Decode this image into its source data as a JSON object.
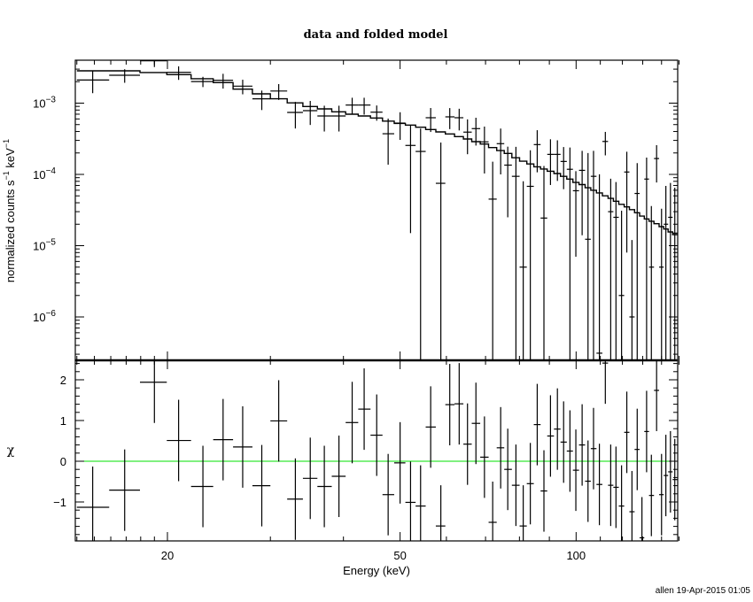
{
  "chart_data": {
    "type": "scatter",
    "title": "data and folded model",
    "xlabel": "Energy (keV)",
    "panels": {
      "top": {
        "ylabel_main": "normalized counts s",
        "ylabel_exp1": "−1",
        "ylabel_mid": " keV",
        "ylabel_exp2": "−1",
        "yscale": "log",
        "ylim": [
          2.4e-07,
          0.0041
        ],
        "ytick_labels": [
          {
            "value": 0.001,
            "base": "10",
            "exp": "−3"
          },
          {
            "value": 0.0001,
            "base": "10",
            "exp": "−4"
          },
          {
            "value": 1e-05,
            "base": "10",
            "exp": "−5"
          },
          {
            "value": 1e-06,
            "base": "10",
            "exp": "−6"
          }
        ]
      },
      "bottom": {
        "ylabel": "χ",
        "ylim": [
          -1.96,
          2.48
        ],
        "ytick_labels": [
          {
            "value": 2,
            "label": "2"
          },
          {
            "value": 1,
            "label": "1"
          },
          {
            "value": 0,
            "label": "0"
          },
          {
            "value": -1,
            "label": "−1"
          }
        ],
        "zero_line_color": "#00e000"
      }
    },
    "xscale": "log",
    "xlim": [
      14,
      150
    ],
    "xtick_labels": [
      {
        "value": 20,
        "label": "20"
      },
      {
        "value": 50,
        "label": "50"
      },
      {
        "value": 100,
        "label": "100"
      }
    ],
    "energy_keV": [
      14.9,
      16.9,
      19.0,
      20.9,
      23.0,
      24.9,
      26.9,
      29.0,
      31.0,
      33.1,
      35.1,
      37.1,
      39.3,
      41.4,
      43.4,
      45.6,
      47.7,
      50.0,
      52.1,
      54.2,
      56.4,
      58.7,
      60.8,
      63.1,
      65.2,
      67.4,
      69.7,
      72.0,
      74.3,
      76.4,
      78.9,
      81.2,
      83.5,
      85.8,
      88.1,
      90.4,
      92.9,
      95.2,
      97.6,
      99.9,
      102.4,
      104.8,
      107.1,
      109.6,
      112.2,
      114.6,
      117.0,
      119.6,
      122.1,
      124.6,
      127.2,
      129.6,
      132.0,
      134.5,
      137.3,
      140.0,
      142.4,
      145.0,
      147.5
    ],
    "data_rate": [
      0.00211,
      0.00246,
      0.00393,
      0.0027,
      0.00201,
      0.00209,
      0.00173,
      0.00115,
      0.00148,
      0.000741,
      0.000784,
      0.00066,
      0.00066,
      0.00094,
      0.00094,
      0.000747,
      0.000372,
      0.000525,
      0.000255,
      0.00021,
      0.000624,
      7.5e-05,
      0.000642,
      0.000624,
      0.000392,
      0.000439,
      0.000286,
      4.5e-05,
      0.00027,
      0.000135,
      9.4e-05,
      5e-06,
      6.8e-05,
      0.000262,
      2.44e-05,
      0.000191,
      0.000191,
      0.000152,
      0.000118,
      5.9e-05,
      0.000114,
      1.23e-05,
      9.4e-05,
      3.1e-07,
      0.00029,
      3e-05,
      2.5e-05,
      2e-06,
      0.000108,
      1e-06,
      5.4e-05,
      1e-07,
      8.6e-05,
      5e-06,
      0.000167,
      5e-06,
      2e-05,
      2.5e-05,
      1.5e-05
    ],
    "data_error": [
      0.00073,
      0.00053,
      0.00072,
      0.00058,
      0.00033,
      0.00049,
      0.0004,
      0.00035,
      0.00037,
      0.0003,
      0.00029,
      0.00026,
      0.00026,
      0.00025,
      0.00025,
      0.00018,
      0.000235,
      0.00022,
      0.00024,
      0.00023,
      0.00023,
      0.000205,
      0.00021,
      0.00021,
      0.0002,
      0.000185,
      0.000183,
      0.000106,
      0.00017,
      0.00011,
      0.00015,
      7.5e-05,
      0.00015,
      0.000155,
      0.000107,
      0.00012,
      0.00011,
      9e-05,
      0.00012,
      5.2e-05,
      0.0001,
      0.000187,
      0.00012,
      0.0001,
      0.000105,
      5.7e-05,
      5.3e-05,
      2.9e-05,
      0.0001,
      1.1e-05,
      9e-05,
      1e-07,
      8.6e-05,
      3.1e-05,
      9e-05,
      2.8e-05,
      4.9e-05,
      5.1e-05,
      5e-05
    ],
    "model_rate": [
      0.00284,
      0.00284,
      0.00269,
      0.00251,
      0.0022,
      0.00194,
      0.00157,
      0.00135,
      0.00115,
      0.00101,
      0.000897,
      0.00083,
      0.000755,
      0.0007,
      0.00066,
      0.000618,
      0.00056,
      0.00052,
      0.000492,
      0.000459,
      0.000426,
      0.000395,
      0.00037,
      0.000339,
      0.000314,
      0.000288,
      0.000267,
      0.000238,
      0.000216,
      0.000197,
      0.000171,
      0.000153,
      0.00014,
      0.000128,
      0.000119,
      0.000111,
      0.000103,
      9.4e-05,
      8.6e-05,
      7.7e-05,
      7.2e-05,
      6.5e-05,
      6e-05,
      5.5e-05,
      5e-05,
      4.6e-05,
      4.2e-05,
      3.8e-05,
      3.5e-05,
      3.2e-05,
      2.9e-05,
      2.6e-05,
      2.37e-05,
      2.2e-05,
      2.03e-05,
      1.85e-05,
      1.71e-05,
      1.56e-05,
      1.43e-05
    ],
    "chi": [
      -1.13,
      -0.71,
      1.94,
      0.51,
      -0.62,
      0.53,
      0.35,
      -0.6,
      0.99,
      -0.93,
      -0.42,
      -0.62,
      -0.37,
      0.95,
      1.28,
      0.64,
      -0.82,
      -0.04,
      -1.01,
      -1.1,
      0.84,
      -1.59,
      1.39,
      1.41,
      0.42,
      0.93,
      0.1,
      -1.5,
      0.33,
      -0.2,
      -0.59,
      -1.59,
      -0.55,
      0.9,
      -0.73,
      0.62,
      0.79,
      0.47,
      0.25,
      -0.22,
      0.4,
      -0.49,
      0.31,
      -0.57,
      2.41,
      -0.59,
      -0.64,
      -1.1,
      0.71,
      -1.24,
      0.29,
      -1.88,
      0.73,
      -0.84,
      1.74,
      -0.82,
      -0.35,
      -0.26,
      -0.45
    ],
    "chi_error": 1,
    "grid": false
  },
  "footer": "allen 19-Apr-2015 01:05"
}
